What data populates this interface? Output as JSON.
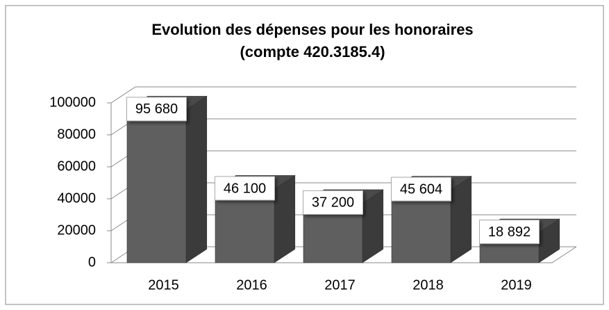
{
  "chart_data": {
    "type": "bar",
    "title": "Evolution des dépenses pour les honoraires",
    "subtitle": "(compte 420.3185.4)",
    "categories": [
      "2015",
      "2016",
      "2017",
      "2018",
      "2019"
    ],
    "values": [
      95680,
      46100,
      37200,
      45604,
      18892
    ],
    "value_labels": [
      "95 680",
      "46 100",
      "37 200",
      "45 604",
      "18 892"
    ],
    "color": "#5f5f5f",
    "ylim": [
      0,
      100000
    ],
    "yticks": [
      0,
      20000,
      40000,
      60000,
      80000,
      100000
    ],
    "grid": true
  }
}
